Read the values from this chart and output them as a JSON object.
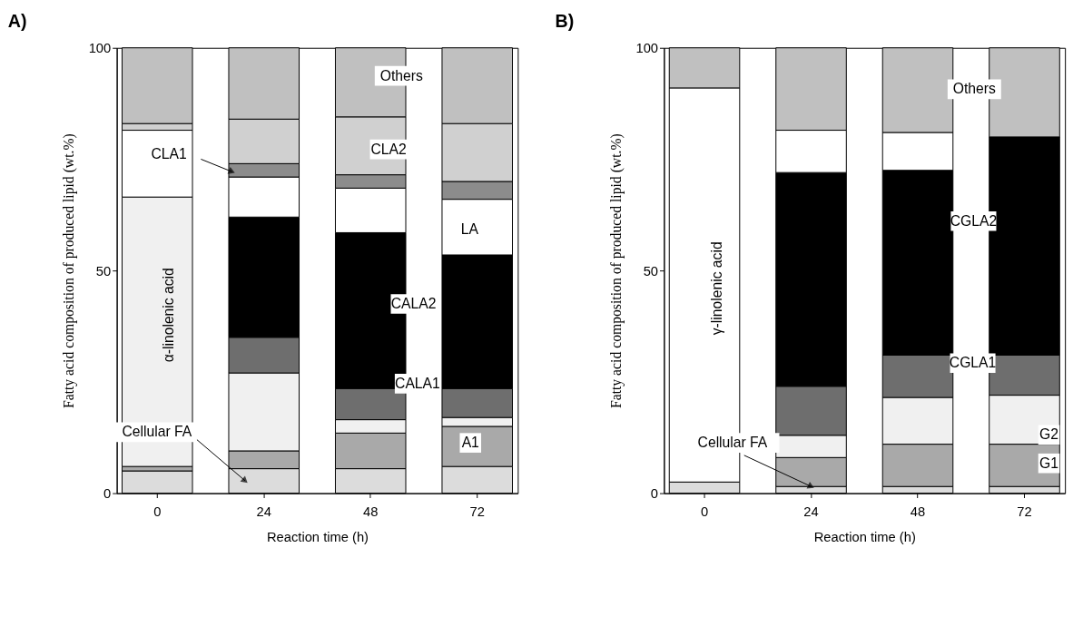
{
  "chart_data": [
    {
      "type": "bar",
      "stacked": true,
      "title": "A)",
      "xlabel": "Reaction time (h)",
      "ylabel": "Fatty acid composition of produced lipid (wt.%)",
      "categories": [
        "0",
        "24",
        "48",
        "72"
      ],
      "ylim": [
        0,
        100
      ],
      "yticks": [
        0,
        50,
        100
      ],
      "series": [
        {
          "color": "#dcdcdc",
          "values": [
            5,
            5.5,
            5.5,
            6
          ]
        },
        {
          "color": "#a9a9a9",
          "values": [
            1,
            4,
            8,
            9
          ]
        },
        {
          "color": "#f0f0f0",
          "values": [
            60.5,
            17.5,
            3,
            2
          ]
        },
        {
          "color": "#6e6e6e",
          "values": [
            null,
            8,
            7,
            6.5
          ]
        },
        {
          "color": "#000000",
          "values": [
            null,
            27,
            35,
            30
          ]
        },
        {
          "color": "#ffffff",
          "values": [
            15,
            9,
            10,
            12.5
          ]
        },
        {
          "color": "#8c8c8c",
          "values": [
            null,
            3,
            3,
            4
          ]
        },
        {
          "color": "#d0d0d0",
          "values": [
            1.5,
            10,
            13,
            13
          ]
        },
        {
          "color": "#c0c0c0",
          "values": [
            17,
            16,
            15.5,
            17
          ]
        }
      ],
      "annotations": [
        "Others",
        "CLA2",
        "LA",
        "CALA2",
        "CALA1",
        "A1",
        "CLA1",
        "Cellular FA",
        "α-linolenic acid"
      ]
    },
    {
      "type": "bar",
      "stacked": true,
      "title": "B)",
      "xlabel": "Reaction time (h)",
      "ylabel": "Fatty acid composition of produced lipid (wt.%)",
      "categories": [
        "0",
        "24",
        "48",
        "72"
      ],
      "ylim": [
        0,
        100
      ],
      "yticks": [
        0,
        50,
        100
      ],
      "series": [
        {
          "color": "#dcdcdc",
          "values": [
            2.5,
            1.5,
            1.5,
            1.5
          ]
        },
        {
          "color": "#a9a9a9",
          "values": [
            null,
            6.5,
            9.5,
            9.5
          ]
        },
        {
          "color": "#f0f0f0",
          "values": [
            null,
            5,
            10.5,
            11
          ]
        },
        {
          "color": "#6e6e6e",
          "values": [
            null,
            11,
            9.5,
            9
          ]
        },
        {
          "color": "#000000",
          "values": [
            null,
            48,
            41.5,
            49
          ]
        },
        {
          "color": "#ffffff",
          "values": [
            88.5,
            9.5,
            8.5,
            null
          ]
        },
        {
          "color": "#c0c0c0",
          "values": [
            9,
            18.5,
            19,
            20
          ]
        }
      ],
      "annotations": [
        "Others",
        "CGLA2",
        "CGLA1",
        "G2",
        "G1",
        "γ-linolenic acid",
        {
          "text": "Cellular FA",
          "x": "24",
          "y": 1.5
        }
      ]
    }
  ]
}
